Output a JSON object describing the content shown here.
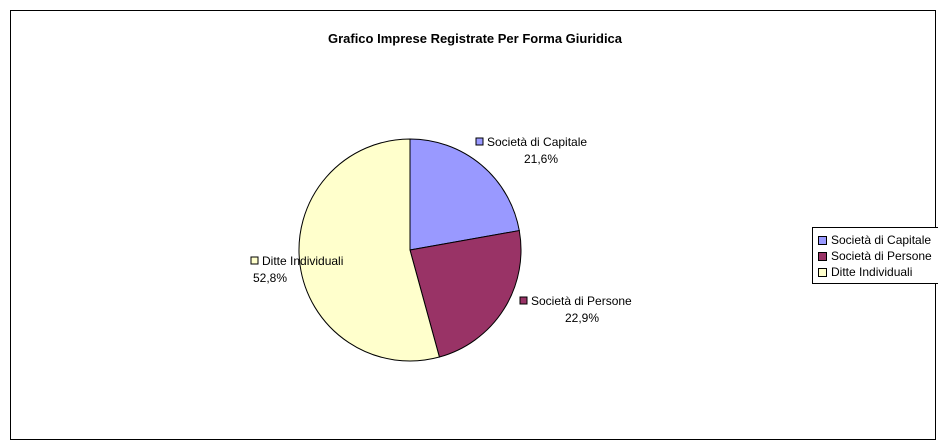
{
  "chart_data": {
    "type": "pie",
    "title": "Grafico Imprese Registrate Per Forma Giuridica",
    "slices": [
      {
        "name": "Società di Capitale",
        "value": 21.6,
        "label": "21,6%",
        "color": "#9999ff"
      },
      {
        "name": "Società di Persone",
        "value": 22.9,
        "label": "22,9%",
        "color": "#993366"
      },
      {
        "name": "Ditte Individuali",
        "value": 52.8,
        "label": "52,8%",
        "color": "#ffffcc"
      }
    ],
    "legend": {
      "position": "right",
      "items": [
        "Società di Capitale",
        "Società di Persone",
        "Ditte Individuali"
      ]
    }
  }
}
